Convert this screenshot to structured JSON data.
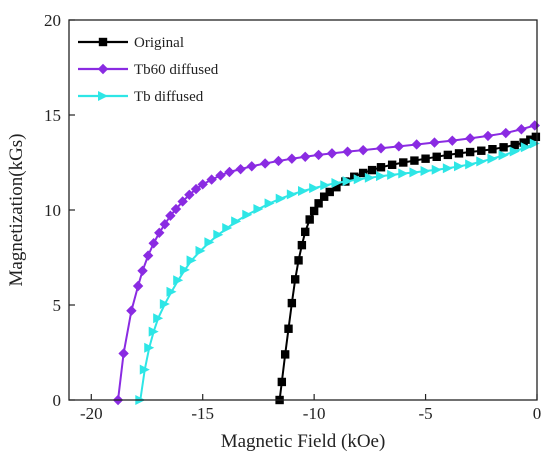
{
  "chart_data": {
    "type": "line",
    "xlabel": "Magnetic Field (kOe)",
    "ylabel": "Magnetization(kGs)",
    "xlim": [
      -21,
      0
    ],
    "ylim": [
      0,
      20
    ],
    "x_ticks": [
      -20,
      -15,
      -10,
      -5,
      0
    ],
    "y_ticks": [
      0,
      5,
      10,
      15,
      20
    ],
    "grid": false,
    "legend_position": "top-left",
    "series": [
      {
        "name": "Original",
        "color": "#000000",
        "marker": "square",
        "points": [
          [
            -11.55,
            0
          ],
          [
            -11.45,
            0.95
          ],
          [
            -11.3,
            2.4
          ],
          [
            -11.15,
            3.75
          ],
          [
            -11.0,
            5.1
          ],
          [
            -10.85,
            6.35
          ],
          [
            -10.7,
            7.35
          ],
          [
            -10.55,
            8.15
          ],
          [
            -10.4,
            8.85
          ],
          [
            -10.2,
            9.5
          ],
          [
            -10.0,
            9.95
          ],
          [
            -9.8,
            10.35
          ],
          [
            -9.55,
            10.7
          ],
          [
            -9.3,
            10.95
          ],
          [
            -9.0,
            11.2
          ],
          [
            -8.6,
            11.5
          ],
          [
            -8.2,
            11.75
          ],
          [
            -7.8,
            11.95
          ],
          [
            -7.4,
            12.1
          ],
          [
            -7.0,
            12.25
          ],
          [
            -6.5,
            12.38
          ],
          [
            -6.0,
            12.5
          ],
          [
            -5.5,
            12.6
          ],
          [
            -5.0,
            12.7
          ],
          [
            -4.5,
            12.8
          ],
          [
            -4.0,
            12.9
          ],
          [
            -3.5,
            12.98
          ],
          [
            -3.0,
            13.05
          ],
          [
            -2.5,
            13.12
          ],
          [
            -2.0,
            13.2
          ],
          [
            -1.5,
            13.3
          ],
          [
            -1.0,
            13.42
          ],
          [
            -0.6,
            13.55
          ],
          [
            -0.3,
            13.7
          ],
          [
            -0.05,
            13.85
          ]
        ]
      },
      {
        "name": "Tb60 diffused",
        "color": "#8a2be2",
        "marker": "diamond",
        "points": [
          [
            -18.8,
            0
          ],
          [
            -18.55,
            2.45
          ],
          [
            -18.2,
            4.7
          ],
          [
            -17.9,
            6.0
          ],
          [
            -17.7,
            6.8
          ],
          [
            -17.45,
            7.6
          ],
          [
            -17.2,
            8.25
          ],
          [
            -16.95,
            8.8
          ],
          [
            -16.7,
            9.25
          ],
          [
            -16.45,
            9.7
          ],
          [
            -16.2,
            10.05
          ],
          [
            -15.9,
            10.45
          ],
          [
            -15.6,
            10.8
          ],
          [
            -15.3,
            11.1
          ],
          [
            -15.0,
            11.35
          ],
          [
            -14.6,
            11.6
          ],
          [
            -14.2,
            11.82
          ],
          [
            -13.8,
            12.0
          ],
          [
            -13.3,
            12.15
          ],
          [
            -12.8,
            12.3
          ],
          [
            -12.2,
            12.45
          ],
          [
            -11.6,
            12.58
          ],
          [
            -11.0,
            12.7
          ],
          [
            -10.4,
            12.8
          ],
          [
            -9.8,
            12.9
          ],
          [
            -9.2,
            12.98
          ],
          [
            -8.5,
            13.07
          ],
          [
            -7.8,
            13.15
          ],
          [
            -7.0,
            13.25
          ],
          [
            -6.2,
            13.35
          ],
          [
            -5.4,
            13.45
          ],
          [
            -4.6,
            13.55
          ],
          [
            -3.8,
            13.65
          ],
          [
            -3.0,
            13.77
          ],
          [
            -2.2,
            13.9
          ],
          [
            -1.4,
            14.05
          ],
          [
            -0.7,
            14.25
          ],
          [
            -0.1,
            14.45
          ]
        ]
      },
      {
        "name": "Tb diffused",
        "color": "#2ee6e6",
        "marker": "triangle-right",
        "points": [
          [
            -17.8,
            0
          ],
          [
            -17.6,
            1.6
          ],
          [
            -17.4,
            2.75
          ],
          [
            -17.2,
            3.6
          ],
          [
            -17.0,
            4.3
          ],
          [
            -16.7,
            5.05
          ],
          [
            -16.4,
            5.7
          ],
          [
            -16.1,
            6.3
          ],
          [
            -15.8,
            6.85
          ],
          [
            -15.5,
            7.35
          ],
          [
            -15.1,
            7.85
          ],
          [
            -14.7,
            8.3
          ],
          [
            -14.3,
            8.7
          ],
          [
            -13.9,
            9.05
          ],
          [
            -13.5,
            9.4
          ],
          [
            -13.0,
            9.75
          ],
          [
            -12.5,
            10.05
          ],
          [
            -12.0,
            10.35
          ],
          [
            -11.5,
            10.6
          ],
          [
            -11.0,
            10.82
          ],
          [
            -10.5,
            11.0
          ],
          [
            -10.0,
            11.15
          ],
          [
            -9.5,
            11.3
          ],
          [
            -9.0,
            11.42
          ],
          [
            -8.5,
            11.52
          ],
          [
            -8.0,
            11.62
          ],
          [
            -7.5,
            11.7
          ],
          [
            -7.0,
            11.78
          ],
          [
            -6.5,
            11.85
          ],
          [
            -6.0,
            11.92
          ],
          [
            -5.5,
            11.98
          ],
          [
            -5.0,
            12.05
          ],
          [
            -4.5,
            12.12
          ],
          [
            -4.0,
            12.2
          ],
          [
            -3.5,
            12.3
          ],
          [
            -3.0,
            12.4
          ],
          [
            -2.5,
            12.55
          ],
          [
            -2.0,
            12.7
          ],
          [
            -1.5,
            12.88
          ],
          [
            -1.0,
            13.08
          ],
          [
            -0.5,
            13.3
          ],
          [
            -0.1,
            13.5
          ]
        ]
      }
    ]
  }
}
